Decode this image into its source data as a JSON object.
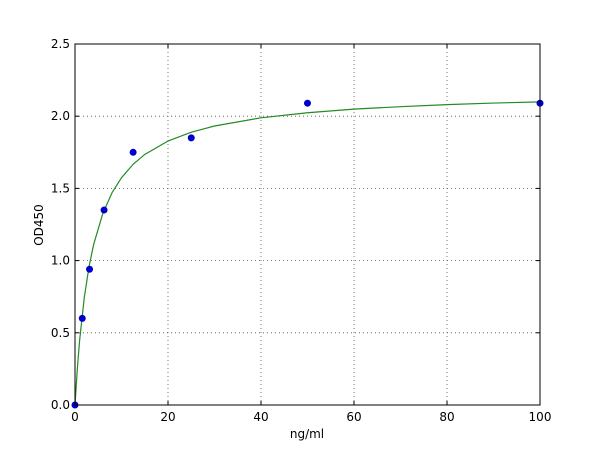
{
  "chart_data": {
    "type": "scatter",
    "title": "",
    "xlabel": "ng/ml",
    "ylabel": "OD450",
    "xlim": [
      0,
      100
    ],
    "ylim": [
      0,
      2.5
    ],
    "xticks": [
      0,
      20,
      40,
      60,
      80,
      100
    ],
    "xtick_labels": [
      "0",
      "20",
      "40",
      "60",
      "80",
      "100"
    ],
    "yticks": [
      0,
      0.5,
      1.0,
      1.5,
      2.0,
      2.5
    ],
    "ytick_labels": [
      "0.0",
      "0.5",
      "1.0",
      "1.5",
      "2.0",
      "2.5"
    ],
    "grid": true,
    "points": {
      "color": "#0000cc",
      "x": [
        0,
        1.56,
        3.125,
        6.25,
        12.5,
        25,
        50,
        100
      ],
      "y": [
        0.0,
        0.6,
        0.94,
        1.35,
        1.75,
        1.85,
        2.09,
        2.09
      ]
    },
    "fit_curve": {
      "color": "#228b22",
      "x": [
        0,
        0.5,
        1,
        2,
        3,
        4,
        6,
        8,
        10,
        12.5,
        15,
        20,
        25,
        30,
        40,
        50,
        60,
        70,
        80,
        90,
        100
      ],
      "y": [
        0,
        0.251,
        0.45,
        0.745,
        0.955,
        1.111,
        1.328,
        1.472,
        1.574,
        1.667,
        1.735,
        1.828,
        1.889,
        1.932,
        1.989,
        2.024,
        2.049,
        2.066,
        2.08,
        2.091,
        2.099
      ]
    }
  }
}
